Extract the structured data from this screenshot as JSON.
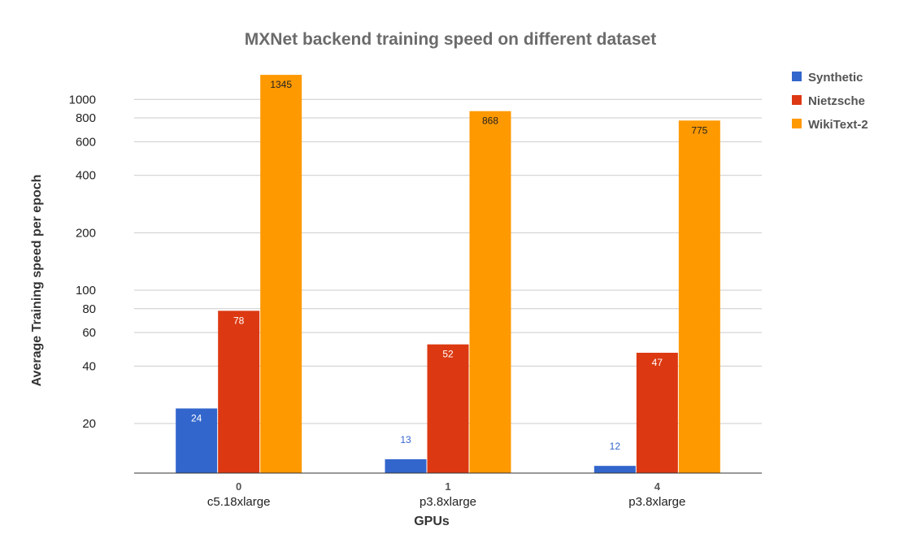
{
  "chart_data": {
    "type": "bar",
    "title": "MXNet backend training speed on different dataset",
    "xlabel": "GPUs",
    "ylabel": "Average Training speed per epoch",
    "yscale": "log",
    "ylim": [
      11,
      1400
    ],
    "yticks": [
      20,
      40,
      60,
      80,
      100,
      200,
      400,
      600,
      800,
      1000
    ],
    "yticklabels": [
      "20",
      "40",
      "60",
      "80",
      "100",
      "200",
      "400",
      "600",
      "800",
      "1000"
    ],
    "grid": true,
    "legend_position": "right",
    "categories": [
      {
        "number": "0",
        "name": "c5.18xlarge"
      },
      {
        "number": "1",
        "name": "p3.8xlarge"
      },
      {
        "number": "4",
        "name": "p3.8xlarge"
      }
    ],
    "series": [
      {
        "name": "Synthetic",
        "color": "#3366cc",
        "values": [
          24,
          13,
          12
        ],
        "labels": [
          "24",
          "13",
          "12"
        ]
      },
      {
        "name": "Nietzsche",
        "color": "#dc3912",
        "values": [
          78,
          52,
          47
        ],
        "labels": [
          "78",
          "52",
          "47"
        ]
      },
      {
        "name": "WikiText-2",
        "color": "#ff9900",
        "values": [
          1345,
          868,
          775
        ],
        "labels": [
          "1345",
          "868",
          "775"
        ]
      }
    ]
  }
}
